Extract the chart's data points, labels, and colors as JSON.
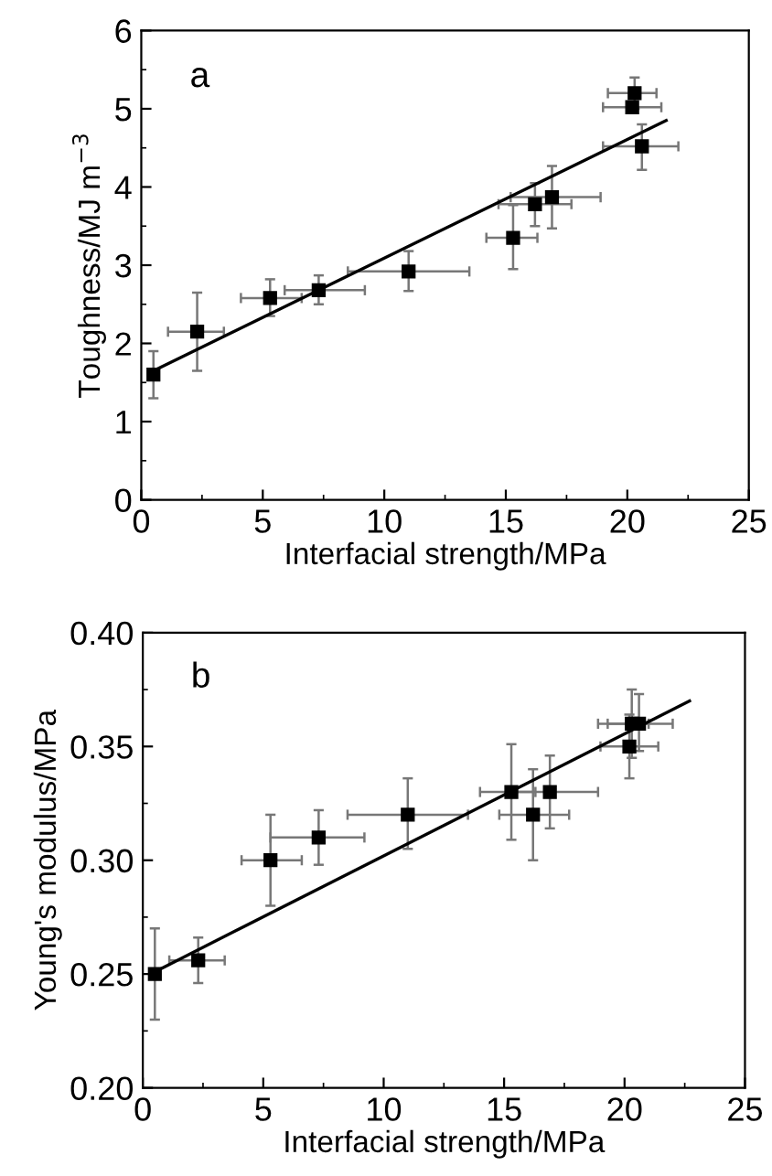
{
  "chart_data": [
    {
      "type": "scatter",
      "xlabel": "Interfacial strength/MPa",
      "ylabel": "Toughness/MJ m$^{−3}$",
      "annotations": [
        "a"
      ],
      "xlim": [
        0,
        25
      ],
      "ylim": [
        0,
        6
      ],
      "xticks": [
        0,
        5,
        10,
        15,
        20,
        25
      ],
      "yticks": [
        0,
        1,
        2,
        3,
        4,
        5,
        6
      ],
      "grid": false,
      "legend": false,
      "series": [
        {
          "marker": "square",
          "color": "#000000",
          "x": [
            0.5,
            2.3,
            5.3,
            7.3,
            11.0,
            15.3,
            16.2,
            16.9,
            20.3,
            20.2,
            20.6
          ],
          "values": [
            1.6,
            2.15,
            2.58,
            2.68,
            2.92,
            3.35,
            3.78,
            3.87,
            5.2,
            5.02,
            4.52
          ],
          "errors": [
            [
              1.3,
              1.9
            ],
            [
              1.65,
              2.65
            ],
            [
              2.35,
              2.82
            ],
            [
              2.5,
              2.87
            ],
            [
              2.67,
              3.18
            ],
            [
              2.95,
              3.77
            ],
            [
              3.5,
              4.05
            ],
            [
              3.47,
              4.27
            ],
            [
              5.0,
              5.4
            ],
            null,
            [
              4.22,
              4.8
            ]
          ],
          "xerrors": [
            null,
            [
              1.1,
              3.4
            ],
            [
              4.1,
              6.6
            ],
            [
              5.9,
              9.2
            ],
            [
              8.5,
              13.5
            ],
            [
              14.2,
              16.3
            ],
            [
              14.7,
              17.7
            ],
            [
              15.2,
              18.9
            ],
            [
              19.2,
              21.2
            ],
            [
              19.0,
              21.4
            ],
            [
              19.0,
              22.1
            ]
          ]
        },
        {
          "type": "line",
          "color": "#000000",
          "x": [
            0.5,
            21.6
          ],
          "values": [
            1.65,
            4.85
          ]
        }
      ]
    },
    {
      "type": "scatter",
      "xlabel": "Interfacial strength/MPa",
      "ylabel": "Young's modulus/MPa",
      "annotations": [
        "b"
      ],
      "xlim": [
        0,
        25
      ],
      "ylim": [
        0.2,
        0.4
      ],
      "xticks": [
        0,
        5,
        10,
        15,
        20,
        25
      ],
      "yticks": [
        {
          "value": 0.2,
          "label": "0.20"
        },
        {
          "value": 0.25,
          "label": "0.25"
        },
        {
          "value": 0.3,
          "label": "0.30"
        },
        {
          "value": 0.35,
          "label": "0.35"
        },
        {
          "value": 0.4,
          "label": "0.40"
        }
      ],
      "grid": false,
      "legend": false,
      "series": [
        {
          "marker": "square",
          "color": "#000000",
          "x": [
            0.5,
            2.3,
            5.3,
            7.3,
            11.0,
            15.3,
            16.2,
            16.9,
            20.2,
            20.3,
            20.6
          ],
          "values": [
            0.25,
            0.256,
            0.3,
            0.31,
            0.32,
            0.33,
            0.32,
            0.33,
            0.35,
            0.36,
            0.36
          ],
          "errors": [
            [
              0.23,
              0.27
            ],
            [
              0.246,
              0.266
            ],
            [
              0.28,
              0.32
            ],
            [
              0.298,
              0.322
            ],
            [
              0.305,
              0.336
            ],
            [
              0.309,
              0.351
            ],
            [
              0.3,
              0.34
            ],
            [
              0.314,
              0.346
            ],
            [
              0.336,
              0.364
            ],
            [
              0.345,
              0.375
            ],
            [
              0.348,
              0.373
            ]
          ],
          "xerrors": [
            null,
            [
              1.1,
              3.4
            ],
            [
              4.1,
              6.6
            ],
            [
              5.3,
              9.2
            ],
            [
              8.5,
              13.5
            ],
            [
              14.0,
              16.3
            ],
            [
              14.8,
              17.7
            ],
            [
              15.2,
              18.9
            ],
            [
              19.0,
              21.4
            ],
            [
              18.9,
              22.0
            ],
            [
              19.3,
              21.0
            ]
          ]
        },
        {
          "type": "line",
          "color": "#000000",
          "x": [
            0.5,
            22.7
          ],
          "values": [
            0.251,
            0.37
          ]
        }
      ]
    }
  ]
}
